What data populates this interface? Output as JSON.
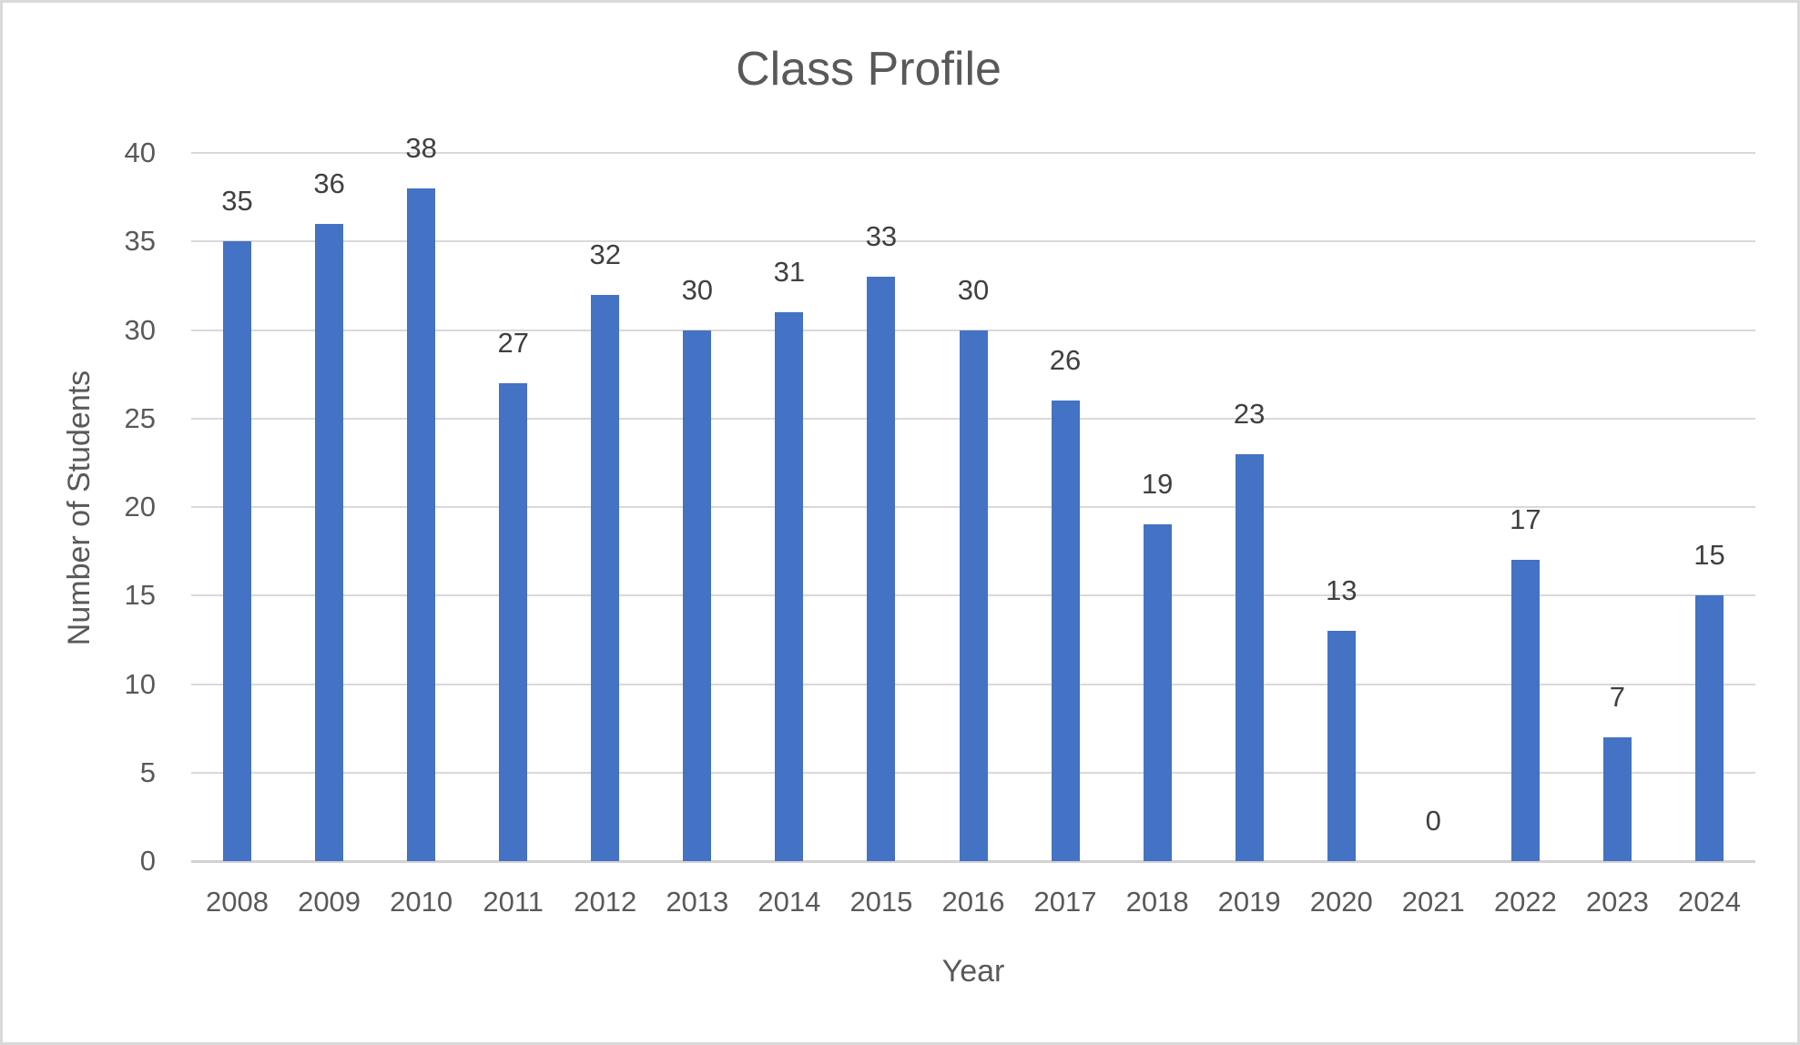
{
  "chart_data": {
    "type": "bar",
    "title": "Class Profile",
    "xlabel": "Year",
    "ylabel": "Number of Students",
    "categories": [
      "2008",
      "2009",
      "2010",
      "2011",
      "2012",
      "2013",
      "2014",
      "2015",
      "2016",
      "2017",
      "2018",
      "2019",
      "2020",
      "2021",
      "2022",
      "2023",
      "2024"
    ],
    "values": [
      35,
      36,
      38,
      27,
      32,
      30,
      31,
      33,
      30,
      26,
      19,
      23,
      13,
      0,
      17,
      7,
      15
    ],
    "ylim": [
      0,
      40
    ],
    "ytick_step": 5,
    "yticks": [
      0,
      5,
      10,
      15,
      20,
      25,
      30,
      35,
      40
    ],
    "grid": true,
    "legend_position": "none",
    "data_labels": "outside-end",
    "colors": {
      "bar": "#4472C4",
      "gridline": "#D9D9D9",
      "axis_line": "#D2D2D2",
      "title_text": "#595959",
      "tick_text": "#595959",
      "data_label_text": "#404040",
      "frame_border": "#D9D9D9",
      "background": "#FFFFFF"
    }
  }
}
